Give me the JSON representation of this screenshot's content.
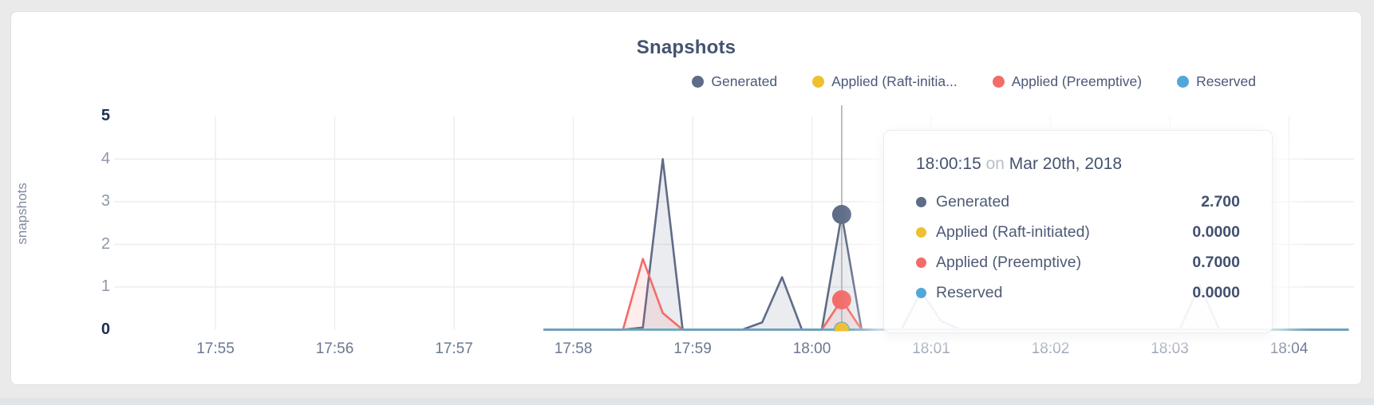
{
  "page": {
    "background": "#eaeaea",
    "card_background": "#ffffff"
  },
  "header": {
    "title": "Snapshots"
  },
  "legend": {
    "items": [
      {
        "label": "Generated",
        "color": "#5f6c87"
      },
      {
        "label": "Applied (Raft-initia...",
        "color": "#efc02e"
      },
      {
        "label": "Applied (Preemptive)",
        "color": "#f26c69"
      },
      {
        "label": "Reserved",
        "color": "#51a7d8"
      }
    ]
  },
  "tooltip": {
    "time": "18:00:15",
    "conjunction": "on",
    "date": "Mar 20th, 2018",
    "rows": [
      {
        "label": "Generated",
        "value": "2.700",
        "color": "#5f6c87"
      },
      {
        "label": "Applied (Raft-initiated)",
        "value": "0.0000",
        "color": "#efc02e"
      },
      {
        "label": "Applied (Preemptive)",
        "value": "0.7000",
        "color": "#f26c69"
      },
      {
        "label": "Reserved",
        "value": "0.0000",
        "color": "#51a7d8"
      }
    ]
  },
  "chart_data": {
    "type": "area",
    "title": "Snapshots",
    "xlabel": "",
    "ylabel": "snapshots",
    "ylim": [
      0,
      5
    ],
    "y_ticks": [
      0,
      1,
      2,
      3,
      4,
      5
    ],
    "y_ticks_bold": [
      0,
      5
    ],
    "x_ticks": [
      "17:55",
      "17:56",
      "17:57",
      "17:58",
      "17:59",
      "18:00",
      "18:01",
      "18:02",
      "18:03",
      "18:04"
    ],
    "grid": "on",
    "legend_position": "top-right",
    "hover_time": "18:00:15",
    "hover_values": {
      "Generated": 2.7,
      "Applied (Raft-initiated)": 0.0,
      "Applied (Preemptive)": 0.7,
      "Reserved": 0.0
    },
    "series": [
      {
        "name": "Generated",
        "color": "#5f6c87",
        "fill": "rgba(95,108,135,0.13)",
        "dot_radius": 12,
        "points": [
          [
            "17:57:45",
            0
          ],
          [
            "17:58:25",
            0
          ],
          [
            "17:58:35",
            0.05
          ],
          [
            "17:58:45",
            4.0
          ],
          [
            "17:58:55",
            0
          ],
          [
            "17:59:25",
            0
          ],
          [
            "17:59:35",
            0.17
          ],
          [
            "17:59:45",
            1.23
          ],
          [
            "17:59:55",
            0
          ],
          [
            "18:00:05",
            0
          ],
          [
            "18:00:15",
            2.7
          ],
          [
            "18:00:25",
            0
          ],
          [
            "18:00:45",
            0
          ],
          [
            "18:00:55",
            0.9
          ],
          [
            "18:01:05",
            0.2
          ],
          [
            "18:01:15",
            0
          ],
          [
            "18:03:05",
            0
          ],
          [
            "18:03:15",
            1.05
          ],
          [
            "18:03:25",
            0
          ],
          [
            "18:04:30",
            0
          ]
        ]
      },
      {
        "name": "Applied (Raft-initiated)",
        "color": "#efc02e",
        "fill": null,
        "dot_radius": 9,
        "points": [
          [
            "17:57:45",
            0
          ],
          [
            "18:04:30",
            0
          ]
        ]
      },
      {
        "name": "Applied (Preemptive)",
        "color": "#f26c69",
        "fill": "rgba(242,108,105,0.12)",
        "dot_radius": 12,
        "points": [
          [
            "17:57:45",
            0
          ],
          [
            "17:58:25",
            0
          ],
          [
            "17:58:35",
            1.66
          ],
          [
            "17:58:45",
            0.39
          ],
          [
            "17:58:55",
            0
          ],
          [
            "18:00:05",
            0
          ],
          [
            "18:00:15",
            0.7
          ],
          [
            "18:00:25",
            0
          ],
          [
            "18:04:30",
            0
          ]
        ]
      },
      {
        "name": "Reserved",
        "color": "#51a7d8",
        "fill": null,
        "dot_radius": 10,
        "points": [
          [
            "17:57:45",
            0
          ],
          [
            "18:04:30",
            0
          ]
        ]
      }
    ]
  }
}
